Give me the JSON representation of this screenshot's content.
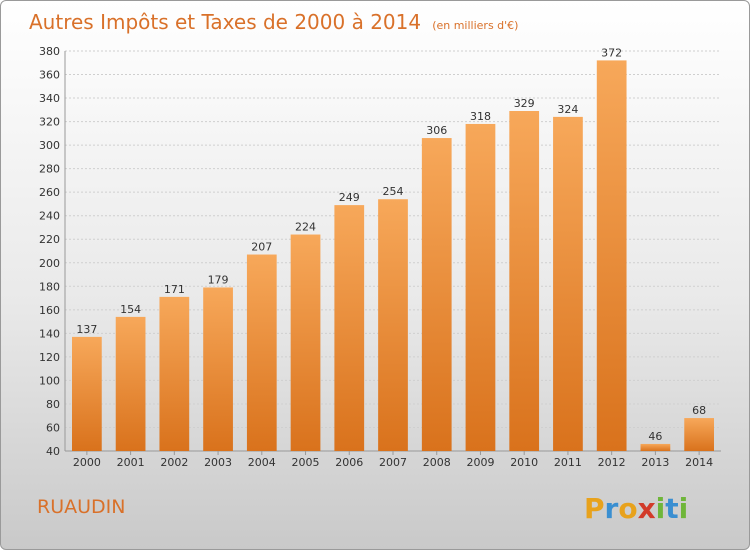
{
  "chart_data": {
    "type": "bar",
    "title": "Autres Impôts et Taxes de 2000 à 2014",
    "subtitle": "(en milliers d'€)",
    "categories": [
      "2000",
      "2001",
      "2002",
      "2003",
      "2004",
      "2005",
      "2006",
      "2007",
      "2008",
      "2009",
      "2010",
      "2011",
      "2012",
      "2013",
      "2014"
    ],
    "values": [
      137,
      154,
      171,
      179,
      207,
      224,
      249,
      254,
      306,
      318,
      329,
      324,
      372,
      46,
      68
    ],
    "ylim": [
      40,
      380
    ],
    "yticks": [
      40,
      60,
      80,
      100,
      120,
      140,
      160,
      180,
      200,
      220,
      240,
      260,
      280,
      300,
      320,
      340,
      360,
      380
    ],
    "grid": true,
    "colors": {
      "bar_light": "#f7a85a",
      "bar_dark": "#d9721c",
      "accent": "#d9712a"
    }
  },
  "footer": {
    "commune": "RUAUDIN",
    "logo_letters": [
      "P",
      "r",
      "o",
      "x",
      "i",
      "t",
      "i"
    ],
    "logo_colors": [
      "#e8a21c",
      "#3a8fd1",
      "#e8a21c",
      "#d23b2a",
      "#6fb63a",
      "#3a8fd1",
      "#6fb63a"
    ]
  }
}
